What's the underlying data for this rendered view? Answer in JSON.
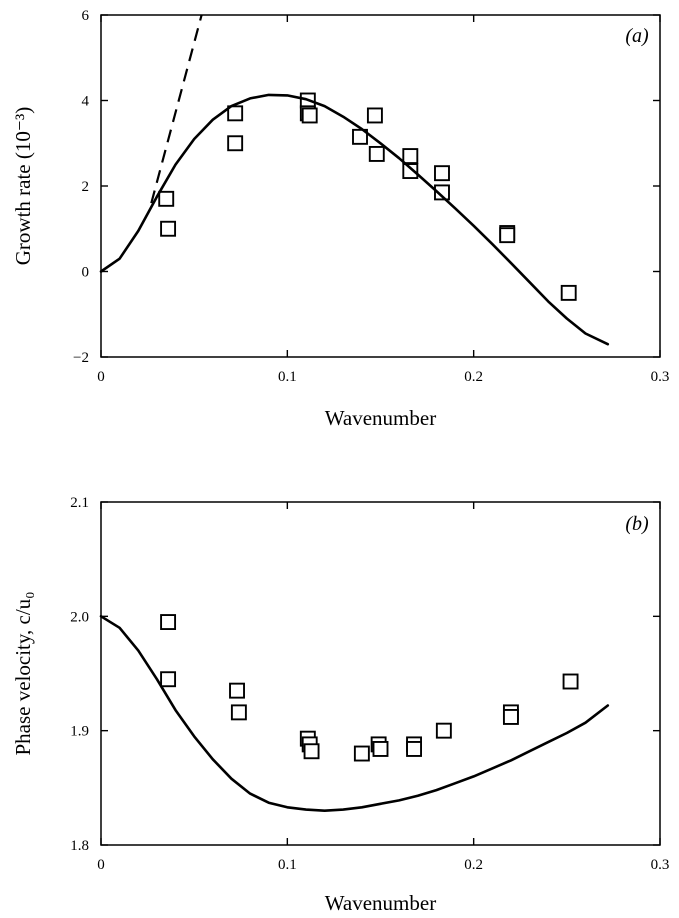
{
  "chart_data": [
    {
      "type": "scatter",
      "panel_label": "(a)",
      "title": "",
      "xlabel": "Wavenumber",
      "ylabel": "Growth rate (10⁻³)",
      "xlim": [
        0,
        0.3
      ],
      "ylim": [
        -2,
        6
      ],
      "x_ticks": [
        0,
        0.1,
        0.2,
        0.3
      ],
      "x_tick_labels": [
        "0",
        "0.1",
        "0.2",
        "0.3"
      ],
      "y_ticks": [
        -2,
        0,
        2,
        4,
        6
      ],
      "y_tick_labels": [
        "−2",
        "0",
        "2",
        "4",
        "6"
      ],
      "grid": false,
      "series": [
        {
          "style": "markers",
          "marker": "open-square",
          "x": [
            0.035,
            0.036,
            0.072,
            0.072,
            0.111,
            0.111,
            0.112,
            0.139,
            0.147,
            0.148,
            0.166,
            0.166,
            0.183,
            0.183,
            0.218,
            0.218,
            0.251
          ],
          "y": [
            1.7,
            1.0,
            3.7,
            3.0,
            4.0,
            3.7,
            3.65,
            3.15,
            3.65,
            2.75,
            2.7,
            2.35,
            2.3,
            1.85,
            0.9,
            0.85,
            -0.5
          ]
        },
        {
          "style": "solid-line",
          "x": [
            0,
            0.01,
            0.02,
            0.03,
            0.04,
            0.05,
            0.06,
            0.07,
            0.08,
            0.09,
            0.1,
            0.11,
            0.12,
            0.13,
            0.14,
            0.15,
            0.16,
            0.17,
            0.18,
            0.19,
            0.2,
            0.21,
            0.22,
            0.23,
            0.24,
            0.25,
            0.26,
            0.272
          ],
          "y": [
            0,
            0.3,
            0.95,
            1.75,
            2.5,
            3.1,
            3.55,
            3.87,
            4.05,
            4.13,
            4.12,
            4.03,
            3.87,
            3.62,
            3.33,
            3.0,
            2.65,
            2.27,
            1.88,
            1.48,
            1.07,
            0.64,
            0.2,
            -0.25,
            -0.7,
            -1.1,
            -1.45,
            -1.7
          ]
        },
        {
          "style": "dashed-line",
          "x": [
            0.027,
            0.054
          ],
          "y": [
            1.6,
            6.0
          ]
        }
      ]
    },
    {
      "type": "scatter",
      "panel_label": "(b)",
      "title": "",
      "xlabel": "Wavenumber",
      "ylabel": "Phase velocity, c/u₀",
      "xlim": [
        0,
        0.3
      ],
      "ylim": [
        1.8,
        2.1
      ],
      "x_ticks": [
        0,
        0.1,
        0.2,
        0.3
      ],
      "x_tick_labels": [
        "0",
        "0.1",
        "0.2",
        "0.3"
      ],
      "y_ticks": [
        1.8,
        1.9,
        2.0,
        2.1
      ],
      "y_tick_labels": [
        "1.8",
        "1.9",
        "2.0",
        "2.1"
      ],
      "grid": false,
      "series": [
        {
          "style": "markers",
          "marker": "open-square",
          "x": [
            0.036,
            0.036,
            0.073,
            0.074,
            0.111,
            0.112,
            0.113,
            0.14,
            0.149,
            0.15,
            0.168,
            0.168,
            0.184,
            0.22,
            0.22,
            0.252
          ],
          "y": [
            1.995,
            1.945,
            1.935,
            1.916,
            1.893,
            1.888,
            1.882,
            1.88,
            1.888,
            1.884,
            1.888,
            1.884,
            1.9,
            1.916,
            1.912,
            1.943
          ]
        },
        {
          "style": "solid-line",
          "x": [
            0,
            0.01,
            0.02,
            0.03,
            0.04,
            0.05,
            0.06,
            0.07,
            0.08,
            0.09,
            0.1,
            0.11,
            0.12,
            0.13,
            0.14,
            0.15,
            0.16,
            0.17,
            0.18,
            0.19,
            0.2,
            0.21,
            0.22,
            0.23,
            0.24,
            0.25,
            0.26,
            0.272
          ],
          "y": [
            2.0,
            1.99,
            1.97,
            1.945,
            1.918,
            1.895,
            1.875,
            1.858,
            1.845,
            1.837,
            1.833,
            1.831,
            1.83,
            1.831,
            1.833,
            1.836,
            1.839,
            1.843,
            1.848,
            1.854,
            1.86,
            1.867,
            1.874,
            1.882,
            1.89,
            1.898,
            1.907,
            1.922
          ]
        }
      ]
    }
  ]
}
